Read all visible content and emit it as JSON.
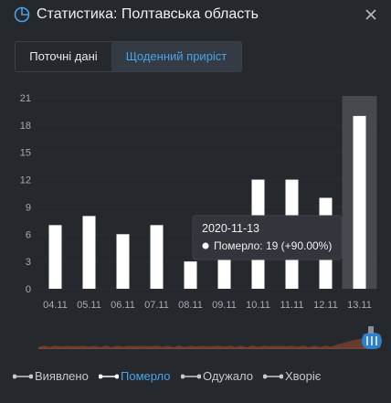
{
  "header": {
    "title": "Статистика: Полтавська область",
    "icon": "pie-chart-icon",
    "close_icon": "close-icon"
  },
  "tabs": [
    {
      "label": "Поточні дані",
      "active": false
    },
    {
      "label": "Щоденний приріст",
      "active": true
    }
  ],
  "colors": {
    "background": "#25282d",
    "accent": "#4aa3e8",
    "bars": "#ffffff",
    "zoom_fill": "#7a4535"
  },
  "chart_data": {
    "type": "bar",
    "categories": [
      "04.11",
      "05.11",
      "06.11",
      "07.11",
      "08.11",
      "09.11",
      "10.11",
      "11.11",
      "12.11",
      "13.11"
    ],
    "series": [
      {
        "name": "Померло",
        "values": [
          7,
          8,
          6,
          7,
          3,
          4,
          12,
          12,
          10,
          19
        ]
      }
    ],
    "y_ticks": [
      "0",
      "3",
      "6",
      "9",
      "12",
      "15",
      "18",
      "21"
    ],
    "ylim": [
      0,
      21
    ],
    "highlighted_index": 9
  },
  "tooltip": {
    "date": "2020-11-13",
    "text": "Померло: 19 (+90.00%)"
  },
  "legend": [
    {
      "label": "Виявлено",
      "active": false
    },
    {
      "label": "Померло",
      "active": true
    },
    {
      "label": "Одужало",
      "active": false
    },
    {
      "label": "Хворіє",
      "active": false
    }
  ]
}
